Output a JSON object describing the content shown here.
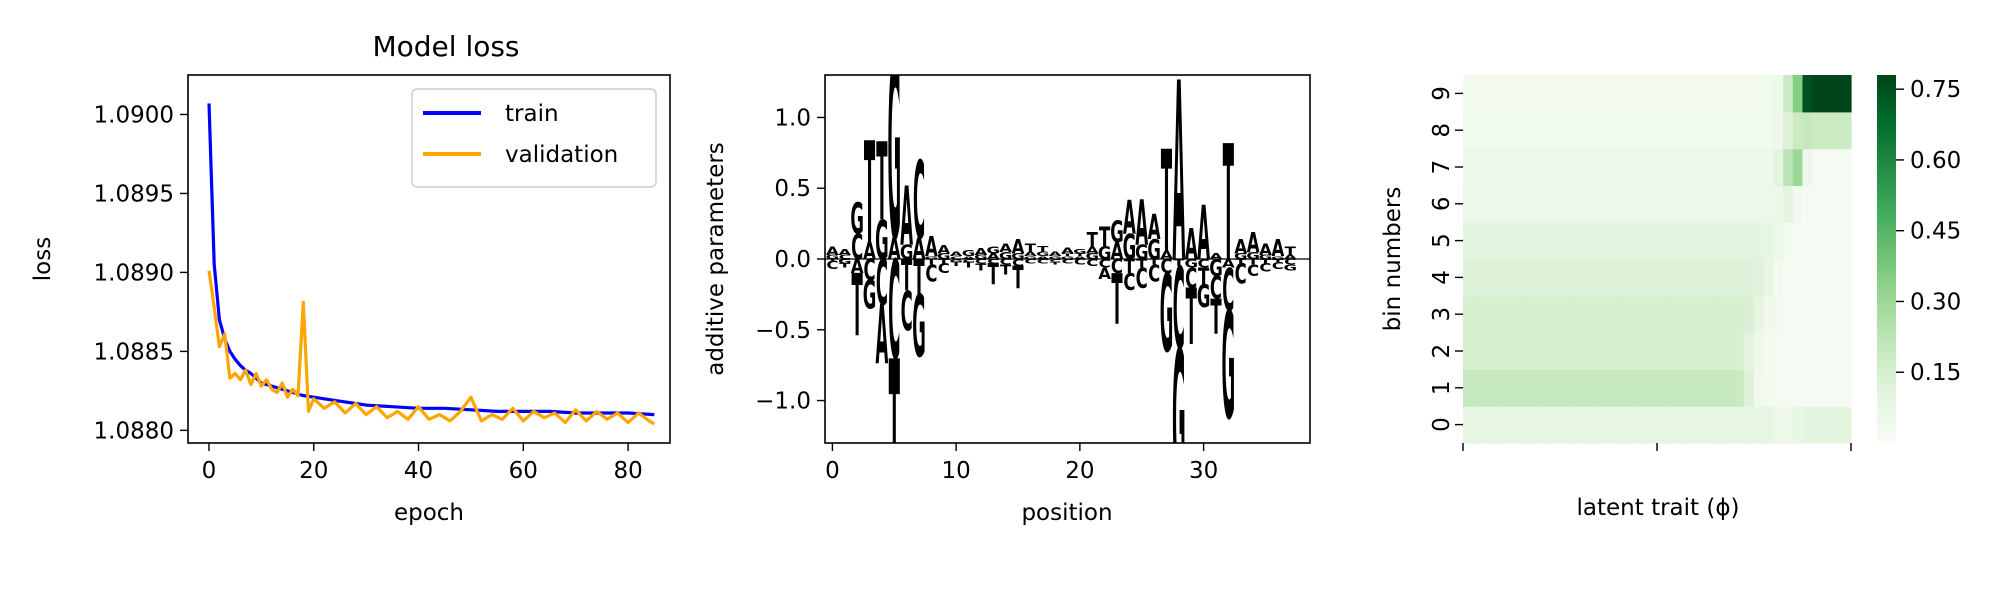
{
  "chart_data": [
    {
      "type": "line",
      "title": "Model loss",
      "xlabel": "epoch",
      "ylabel": "loss",
      "xlim": [
        -4,
        88
      ],
      "ylim": [
        1.08792,
        1.09025
      ],
      "xticks": [
        "0",
        "20",
        "40",
        "60",
        "80"
      ],
      "yticks": [
        "1.0880",
        "1.0885",
        "1.0890",
        "1.0895",
        "1.0900"
      ],
      "legend_position": "top-right",
      "grid": false,
      "series": [
        {
          "name": "train",
          "color": "#0000ff",
          "x": [
            0,
            1,
            2,
            3,
            4,
            5,
            6,
            7,
            8,
            9,
            10,
            12,
            14,
            16,
            18,
            20,
            22,
            24,
            26,
            28,
            30,
            35,
            40,
            45,
            50,
            55,
            60,
            65,
            70,
            75,
            80,
            85
          ],
          "values": [
            1.09007,
            1.08905,
            1.0887,
            1.08858,
            1.0885,
            1.08845,
            1.08841,
            1.08838,
            1.08836,
            1.08833,
            1.0883,
            1.08828,
            1.08826,
            1.08824,
            1.08822,
            1.08821,
            1.0882,
            1.08819,
            1.08818,
            1.08817,
            1.08816,
            1.08815,
            1.08814,
            1.08814,
            1.08813,
            1.08812,
            1.08812,
            1.08812,
            1.08811,
            1.08811,
            1.08811,
            1.0881
          ]
        },
        {
          "name": "validation",
          "color": "#ffa500",
          "x": [
            0,
            1,
            2,
            3,
            4,
            5,
            6,
            7,
            8,
            9,
            10,
            11,
            12,
            13,
            14,
            15,
            16,
            17,
            18,
            19,
            20,
            22,
            24,
            26,
            28,
            30,
            32,
            34,
            36,
            38,
            40,
            42,
            44,
            46,
            48,
            50,
            52,
            54,
            56,
            58,
            60,
            62,
            64,
            66,
            68,
            70,
            72,
            74,
            76,
            78,
            80,
            82,
            84,
            85
          ],
          "values": [
            1.08901,
            1.08878,
            1.08853,
            1.08861,
            1.08833,
            1.08836,
            1.08832,
            1.08838,
            1.08829,
            1.08836,
            1.08828,
            1.08832,
            1.08826,
            1.08824,
            1.0883,
            1.08821,
            1.08826,
            1.08822,
            1.08881,
            1.08812,
            1.0882,
            1.08814,
            1.08818,
            1.08811,
            1.08817,
            1.0881,
            1.08815,
            1.08808,
            1.08812,
            1.08807,
            1.08815,
            1.08807,
            1.0881,
            1.08806,
            1.08812,
            1.08821,
            1.08806,
            1.0881,
            1.08807,
            1.08814,
            1.08806,
            1.08812,
            1.08808,
            1.08811,
            1.08805,
            1.08813,
            1.08806,
            1.08812,
            1.08807,
            1.08811,
            1.08805,
            1.08811,
            1.08806,
            1.08804
          ]
        }
      ]
    },
    {
      "type": "other",
      "subtype": "sequence-logo",
      "xlabel": "position",
      "ylabel": "additive parameters",
      "xlim": [
        -0.6,
        38.6
      ],
      "ylim": [
        -1.3,
        1.3
      ],
      "xticks": [
        "0",
        "10",
        "20",
        "30"
      ],
      "yticks": [
        "−1.0",
        "−0.5",
        "0.0",
        "0.5",
        "1.0"
      ],
      "letter_colors": {
        "A": "#008000",
        "C": "#0000ff",
        "G": "#ffa500",
        "T": "#ff0000"
      },
      "positions": [
        {
          "A": 0.06,
          "C": -0.06,
          "G": 0.03,
          "T": -0.01
        },
        {
          "A": 0.04,
          "C": 0.03,
          "G": -0.03,
          "T": -0.03
        },
        {
          "A": -0.1,
          "C": 0.18,
          "G": 0.22,
          "T": -0.44
        },
        {
          "A": 0.12,
          "C": -0.15,
          "G": -0.2,
          "T": 0.72
        },
        {
          "A": -0.42,
          "C": -0.32,
          "G": 0.28,
          "T": 0.55
        },
        {
          "A": 0.15,
          "C": -0.7,
          "G": 1.28,
          "T": -1.3
        },
        {
          "A": 0.42,
          "C": -0.28,
          "G": 0.1,
          "T": -0.22
        },
        {
          "A": 0.15,
          "C": 0.55,
          "G": -0.44,
          "T": -0.25
        },
        {
          "A": 0.14,
          "C": -0.12,
          "G": 0.02,
          "T": -0.04
        },
        {
          "A": 0.06,
          "C": -0.07,
          "G": 0.04,
          "T": -0.03
        },
        {
          "A": 0.03,
          "C": 0.02,
          "G": -0.02,
          "T": -0.03
        },
        {
          "A": 0.02,
          "C": -0.02,
          "G": 0.04,
          "T": -0.04
        },
        {
          "A": 0.05,
          "C": -0.03,
          "G": 0.03,
          "T": -0.05
        },
        {
          "A": 0.04,
          "C": -0.03,
          "G": 0.05,
          "T": -0.15
        },
        {
          "A": 0.06,
          "C": -0.04,
          "G": 0.05,
          "T": -0.07
        },
        {
          "A": 0.1,
          "C": -0.05,
          "G": 0.04,
          "T": -0.16
        },
        {
          "A": 0.03,
          "C": -0.03,
          "G": 0.02,
          "T": 0.06
        },
        {
          "A": 0.02,
          "C": -0.03,
          "G": 0.03,
          "T": 0.04
        },
        {
          "A": 0.03,
          "C": -0.02,
          "G": 0.02,
          "T": -0.02
        },
        {
          "A": 0.04,
          "C": -0.03,
          "G": 0.02,
          "T": 0.02
        },
        {
          "A": 0.02,
          "C": -0.04,
          "G": 0.03,
          "T": 0.02
        },
        {
          "A": 0.05,
          "C": -0.05,
          "G": 0.04,
          "T": 0.1
        },
        {
          "A": -0.08,
          "C": -0.06,
          "G": 0.09,
          "T": 0.14
        },
        {
          "A": 0.12,
          "C": -0.1,
          "G": 0.15,
          "T": -0.36
        },
        {
          "A": 0.24,
          "C": -0.12,
          "G": 0.18,
          "T": -0.1
        },
        {
          "A": 0.32,
          "C": -0.14,
          "G": 0.1,
          "T": -0.06
        },
        {
          "A": 0.18,
          "C": -0.12,
          "G": 0.14,
          "T": -0.04
        },
        {
          "A": 0.06,
          "C": -0.1,
          "G": -0.55,
          "T": 0.72
        },
        {
          "A": 1.27,
          "C": -0.58,
          "G": -0.98,
          "T": -0.05
        },
        {
          "A": 0.22,
          "C": -0.14,
          "G": -0.06,
          "T": -0.4
        },
        {
          "A": 0.38,
          "C": -0.06,
          "G": -0.16,
          "T": -0.12
        },
        {
          "A": 0.04,
          "C": -0.16,
          "G": -0.12,
          "T": -0.25
        },
        {
          "A": -0.06,
          "C": -0.3,
          "G": -0.76,
          "T": 0.82
        },
        {
          "A": 0.1,
          "C": -0.14,
          "G": 0.04,
          "T": -0.03
        },
        {
          "A": 0.14,
          "C": -0.08,
          "G": 0.05,
          "T": -0.04
        },
        {
          "A": 0.08,
          "C": -0.06,
          "G": 0.03,
          "T": -0.03
        },
        {
          "A": 0.12,
          "C": -0.05,
          "G": 0.02,
          "T": -0.02
        },
        {
          "A": 0.03,
          "C": -0.04,
          "G": -0.04,
          "T": 0.06
        }
      ]
    },
    {
      "type": "heatmap",
      "xlabel": "latent trait (ϕ)",
      "ylabel": "bin numbers",
      "yticks": [
        "0",
        "1",
        "2",
        "3",
        "4",
        "5",
        "6",
        "7",
        "8",
        "9"
      ],
      "colormap": "Greens",
      "colorbar_ticks": [
        "0.15",
        "0.30",
        "0.45",
        "0.60",
        "0.75"
      ],
      "colorbar_range": [
        0.0,
        0.78
      ],
      "ncols": 40,
      "rows": [
        {
          "bin": "0",
          "values": [
            0.09,
            0.09,
            0.09,
            0.09,
            0.09,
            0.09,
            0.09,
            0.09,
            0.09,
            0.09,
            0.09,
            0.09,
            0.09,
            0.09,
            0.09,
            0.09,
            0.09,
            0.09,
            0.09,
            0.09,
            0.09,
            0.09,
            0.09,
            0.09,
            0.09,
            0.09,
            0.09,
            0.09,
            0.09,
            0.09,
            0.09,
            0.09,
            0.06,
            0.05,
            0.08,
            0.1,
            0.1,
            0.1,
            0.1,
            0.1
          ]
        },
        {
          "bin": "1",
          "values": [
            0.2,
            0.2,
            0.2,
            0.2,
            0.2,
            0.2,
            0.2,
            0.2,
            0.2,
            0.2,
            0.2,
            0.2,
            0.2,
            0.2,
            0.2,
            0.2,
            0.2,
            0.2,
            0.2,
            0.2,
            0.2,
            0.2,
            0.2,
            0.2,
            0.2,
            0.2,
            0.2,
            0.2,
            0.19,
            0.12,
            0.04,
            0.02,
            0.01,
            0.01,
            0.01,
            0.01,
            0.01,
            0.01,
            0.01,
            0.01
          ]
        },
        {
          "bin": "2",
          "values": [
            0.15,
            0.15,
            0.15,
            0.15,
            0.15,
            0.15,
            0.15,
            0.15,
            0.15,
            0.15,
            0.15,
            0.15,
            0.15,
            0.15,
            0.15,
            0.15,
            0.15,
            0.15,
            0.15,
            0.15,
            0.15,
            0.15,
            0.15,
            0.15,
            0.15,
            0.15,
            0.15,
            0.15,
            0.14,
            0.1,
            0.05,
            0.02,
            0.01,
            0.01,
            0.01,
            0.01,
            0.01,
            0.01,
            0.01,
            0.01
          ]
        },
        {
          "bin": "3",
          "values": [
            0.15,
            0.15,
            0.15,
            0.15,
            0.15,
            0.15,
            0.15,
            0.15,
            0.15,
            0.15,
            0.15,
            0.15,
            0.15,
            0.15,
            0.15,
            0.15,
            0.15,
            0.15,
            0.15,
            0.15,
            0.15,
            0.15,
            0.15,
            0.15,
            0.15,
            0.15,
            0.15,
            0.15,
            0.15,
            0.13,
            0.08,
            0.04,
            0.02,
            0.01,
            0.01,
            0.01,
            0.01,
            0.01,
            0.01,
            0.01
          ]
        },
        {
          "bin": "4",
          "values": [
            0.12,
            0.12,
            0.12,
            0.12,
            0.12,
            0.12,
            0.12,
            0.12,
            0.12,
            0.12,
            0.12,
            0.12,
            0.12,
            0.12,
            0.12,
            0.12,
            0.12,
            0.12,
            0.12,
            0.12,
            0.12,
            0.12,
            0.12,
            0.12,
            0.12,
            0.12,
            0.12,
            0.12,
            0.12,
            0.12,
            0.11,
            0.08,
            0.03,
            0.01,
            0.01,
            0.01,
            0.01,
            0.01,
            0.01,
            0.01
          ]
        },
        {
          "bin": "5",
          "values": [
            0.1,
            0.1,
            0.1,
            0.1,
            0.1,
            0.1,
            0.1,
            0.1,
            0.1,
            0.1,
            0.1,
            0.1,
            0.1,
            0.1,
            0.1,
            0.1,
            0.1,
            0.1,
            0.1,
            0.1,
            0.1,
            0.1,
            0.1,
            0.1,
            0.1,
            0.1,
            0.1,
            0.1,
            0.1,
            0.1,
            0.1,
            0.09,
            0.06,
            0.02,
            0.01,
            0.01,
            0.01,
            0.01,
            0.01,
            0.01
          ]
        },
        {
          "bin": "6",
          "values": [
            0.06,
            0.06,
            0.06,
            0.06,
            0.06,
            0.06,
            0.06,
            0.06,
            0.06,
            0.06,
            0.06,
            0.06,
            0.06,
            0.06,
            0.06,
            0.06,
            0.06,
            0.06,
            0.06,
            0.06,
            0.06,
            0.06,
            0.06,
            0.06,
            0.06,
            0.06,
            0.06,
            0.06,
            0.06,
            0.06,
            0.06,
            0.06,
            0.06,
            0.1,
            0.03,
            0.01,
            0.01,
            0.01,
            0.01,
            0.01
          ]
        },
        {
          "bin": "7",
          "values": [
            0.05,
            0.05,
            0.05,
            0.05,
            0.05,
            0.05,
            0.05,
            0.05,
            0.05,
            0.05,
            0.05,
            0.05,
            0.05,
            0.05,
            0.05,
            0.05,
            0.05,
            0.05,
            0.05,
            0.05,
            0.05,
            0.05,
            0.05,
            0.05,
            0.05,
            0.05,
            0.05,
            0.05,
            0.05,
            0.05,
            0.05,
            0.05,
            0.1,
            0.22,
            0.3,
            0.05,
            0.01,
            0.01,
            0.01,
            0.01
          ]
        },
        {
          "bin": "8",
          "values": [
            0.03,
            0.03,
            0.03,
            0.03,
            0.03,
            0.03,
            0.03,
            0.03,
            0.03,
            0.03,
            0.03,
            0.03,
            0.03,
            0.03,
            0.03,
            0.03,
            0.03,
            0.03,
            0.03,
            0.03,
            0.03,
            0.03,
            0.03,
            0.03,
            0.03,
            0.03,
            0.03,
            0.03,
            0.03,
            0.03,
            0.03,
            0.03,
            0.05,
            0.12,
            0.18,
            0.2,
            0.18,
            0.18,
            0.18,
            0.18
          ]
        },
        {
          "bin": "9",
          "values": [
            0.02,
            0.02,
            0.02,
            0.02,
            0.02,
            0.02,
            0.02,
            0.02,
            0.02,
            0.02,
            0.02,
            0.02,
            0.02,
            0.02,
            0.02,
            0.02,
            0.02,
            0.02,
            0.02,
            0.02,
            0.02,
            0.02,
            0.02,
            0.02,
            0.02,
            0.02,
            0.02,
            0.02,
            0.02,
            0.02,
            0.02,
            0.03,
            0.06,
            0.18,
            0.35,
            0.75,
            0.78,
            0.78,
            0.78,
            0.78
          ]
        }
      ]
    }
  ]
}
